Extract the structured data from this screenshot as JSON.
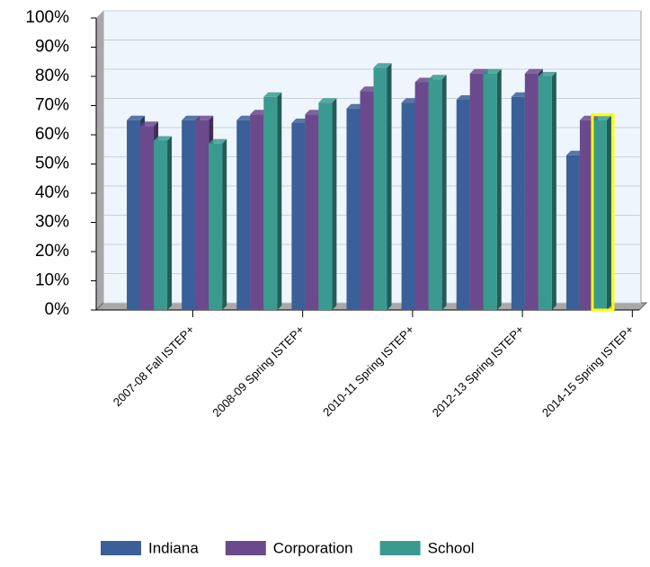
{
  "chart_data": {
    "type": "bar3d",
    "categories": [
      "2007-08 Fall ISTEP+",
      null,
      "2008-09 Spring ISTEP+",
      null,
      "2010-11 Spring ISTEP+",
      null,
      "2012-13 Spring ISTEP+",
      null,
      "2014-15 Spring ISTEP+"
    ],
    "series": [
      {
        "name": "Indiana",
        "color": "#3b5f98",
        "values": [
          65,
          65,
          65,
          64,
          69,
          71,
          72,
          73,
          53
        ]
      },
      {
        "name": "Corporation",
        "color": "#6a4a8c",
        "values": [
          63,
          65,
          67,
          67,
          75,
          78,
          81,
          81,
          65
        ]
      },
      {
        "name": "School",
        "color": "#3a9a90",
        "values": [
          58,
          57,
          73,
          71,
          83,
          79,
          81,
          80,
          65
        ]
      }
    ],
    "ylim": [
      0,
      100
    ],
    "yticks": [
      {
        "value": 0,
        "label": "0%"
      },
      {
        "value": 10,
        "label": "10%"
      },
      {
        "value": 20,
        "label": "20%"
      },
      {
        "value": 30,
        "label": "30%"
      },
      {
        "value": 40,
        "label": "40%"
      },
      {
        "value": 50,
        "label": "50%"
      },
      {
        "value": 60,
        "label": "60%"
      },
      {
        "value": 70,
        "label": "70%"
      },
      {
        "value": 80,
        "label": "80%"
      },
      {
        "value": 90,
        "label": "90%"
      },
      {
        "value": 100,
        "label": "100%"
      }
    ],
    "grid": true,
    "legend": "bottom"
  }
}
